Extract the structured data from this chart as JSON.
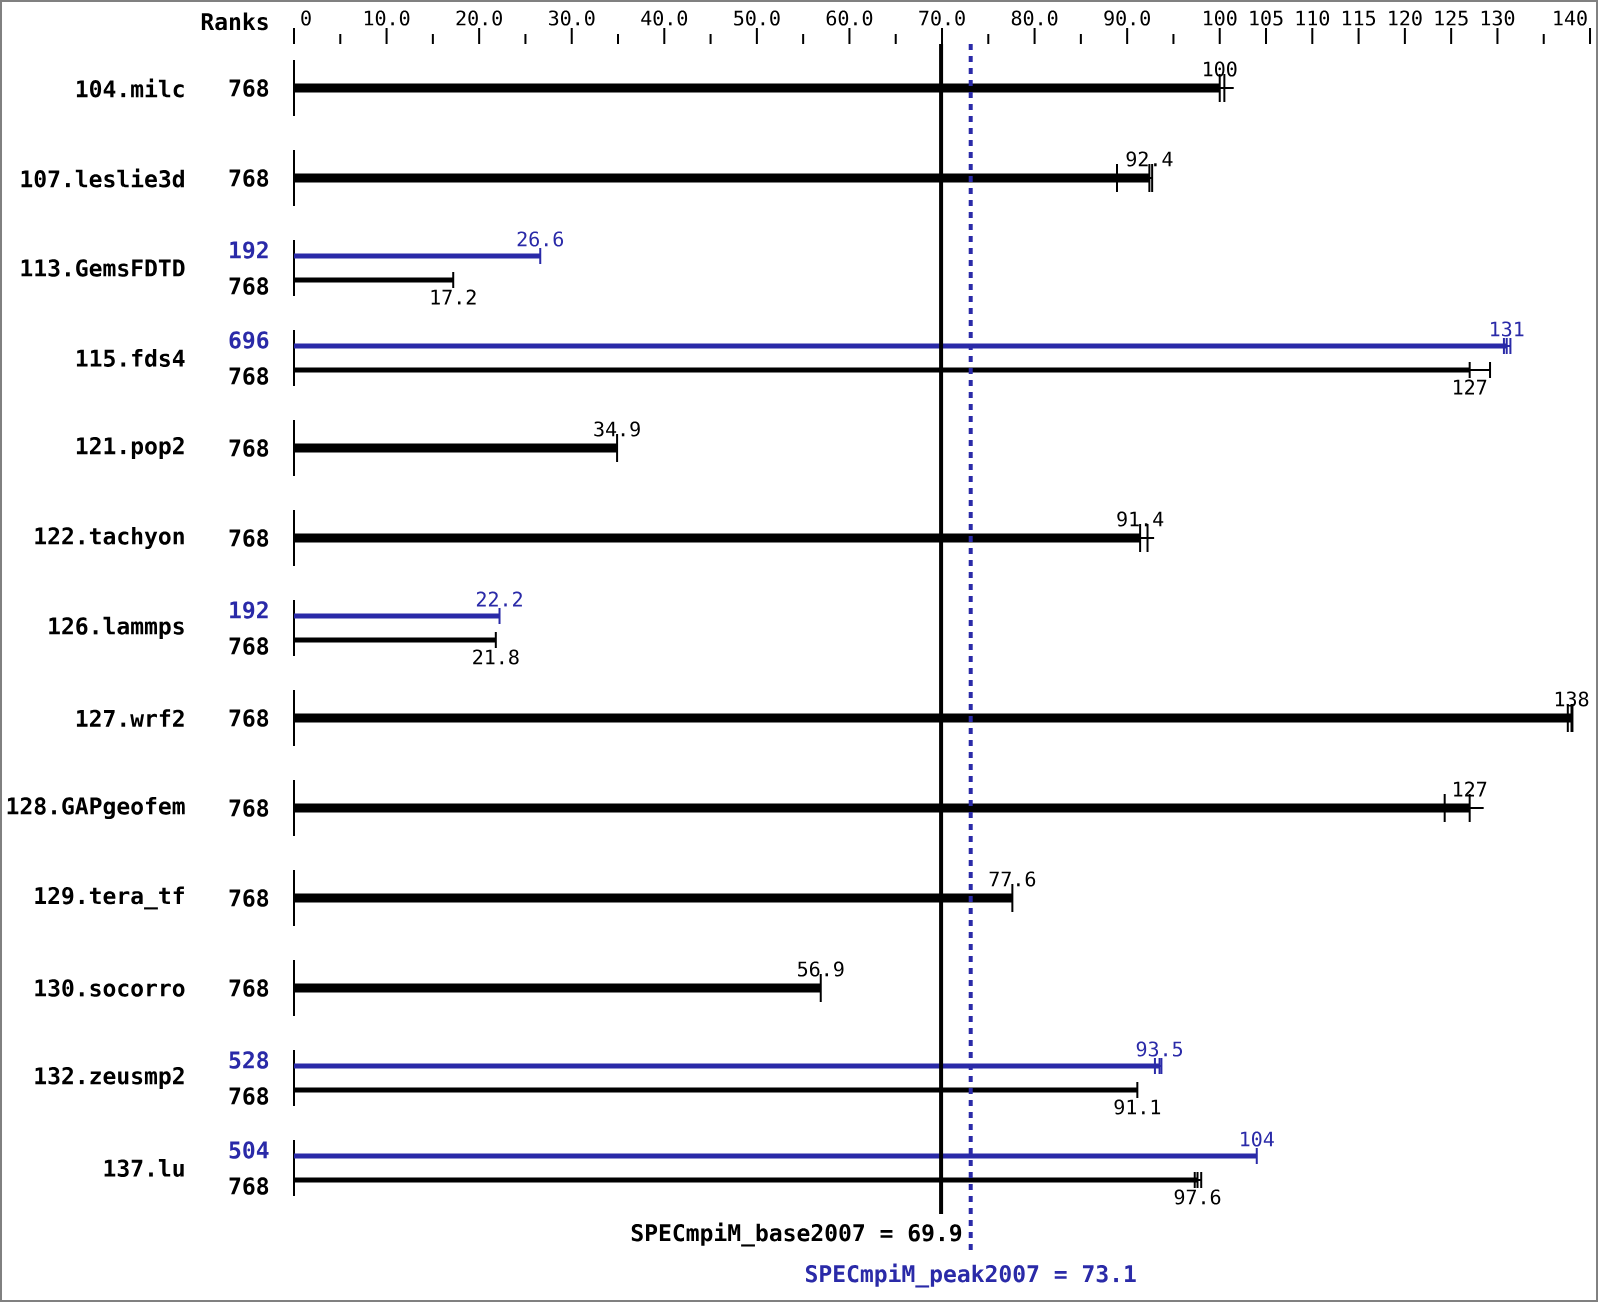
{
  "chart_data": {
    "type": "bar",
    "orientation": "horizontal",
    "categories": [
      "104.milc",
      "107.leslie3d",
      "113.GemsFDTD",
      "115.fds4",
      "121.pop2",
      "122.tachyon",
      "126.lammps",
      "127.wrf2",
      "128.GAPgeofem",
      "129.tera_tf",
      "130.socorro",
      "132.zeusmp2",
      "137.lu"
    ],
    "series": [
      {
        "color": "#2a2aa8",
        "values": [
          null,
          null,
          26.6,
          131,
          null,
          null,
          22.2,
          null,
          null,
          null,
          null,
          93.5,
          104
        ],
        "errors": [
          null,
          null,
          null,
          [
            130.7,
            131.4
          ],
          null,
          null,
          null,
          null,
          null,
          null,
          null,
          [
            93.0,
            93.7
          ],
          null
        ]
      },
      {
        "color": "#000000",
        "values": [
          100,
          92.4,
          17.2,
          127,
          34.9,
          91.4,
          21.8,
          138,
          127,
          77.6,
          56.9,
          91.1,
          97.6
        ],
        "errors": [
          [
            100,
            100.5
          ],
          [
            88.9,
            92.7
          ],
          null,
          [
            127,
            129.2
          ],
          null,
          [
            91.4,
            92.2
          ],
          null,
          [
            137.6,
            138.1
          ],
          [
            124.3,
            127
          ],
          null,
          null,
          null,
          [
            97.3,
            98.0
          ]
        ]
      }
    ],
    "xlim": [
      0,
      140
    ],
    "xticks": [
      0,
      {
        "value": 5,
        "label": null
      },
      {
        "value": 10,
        "label": "10.0"
      },
      {
        "value": 15,
        "label": null
      },
      {
        "value": 20,
        "label": "20.0"
      },
      {
        "value": 25,
        "label": null
      },
      {
        "value": 30,
        "label": "30.0"
      },
      {
        "value": 35,
        "label": null
      },
      {
        "value": 40,
        "label": "40.0"
      },
      {
        "value": 45,
        "label": null
      },
      {
        "value": 50,
        "label": "50.0"
      },
      {
        "value": 55,
        "label": null
      },
      {
        "value": 60,
        "label": "60.0"
      },
      {
        "value": 65,
        "label": null
      },
      {
        "value": 70,
        "label": "70.0"
      },
      {
        "value": 75,
        "label": null
      },
      {
        "value": 80,
        "label": "80.0"
      },
      {
        "value": 85,
        "label": null
      },
      {
        "value": 90,
        "label": "90.0"
      },
      {
        "value": 95,
        "label": null
      },
      100,
      105,
      110,
      115,
      120,
      125,
      130,
      {
        "value": 135,
        "label": null
      },
      140
    ],
    "data_labels": true,
    "ref_lines": [
      {
        "axis": "x",
        "value": 69.9,
        "label": "SPECmpiM_base2007 = 69.9",
        "color": "#000000",
        "line_style": "solid"
      },
      {
        "axis": "x",
        "value": 73.1,
        "label": "SPECmpiM_peak2007 = 73.1",
        "color": "#2a2aa8",
        "line_style": "dotted"
      }
    ],
    "annotations": [
      "Ranks",
      "768",
      "768",
      "192",
      "768",
      "696",
      "768",
      "768",
      "768",
      "192",
      "768",
      "768",
      "768",
      "768",
      "768",
      "528",
      "768",
      "504",
      "768"
    ]
  }
}
